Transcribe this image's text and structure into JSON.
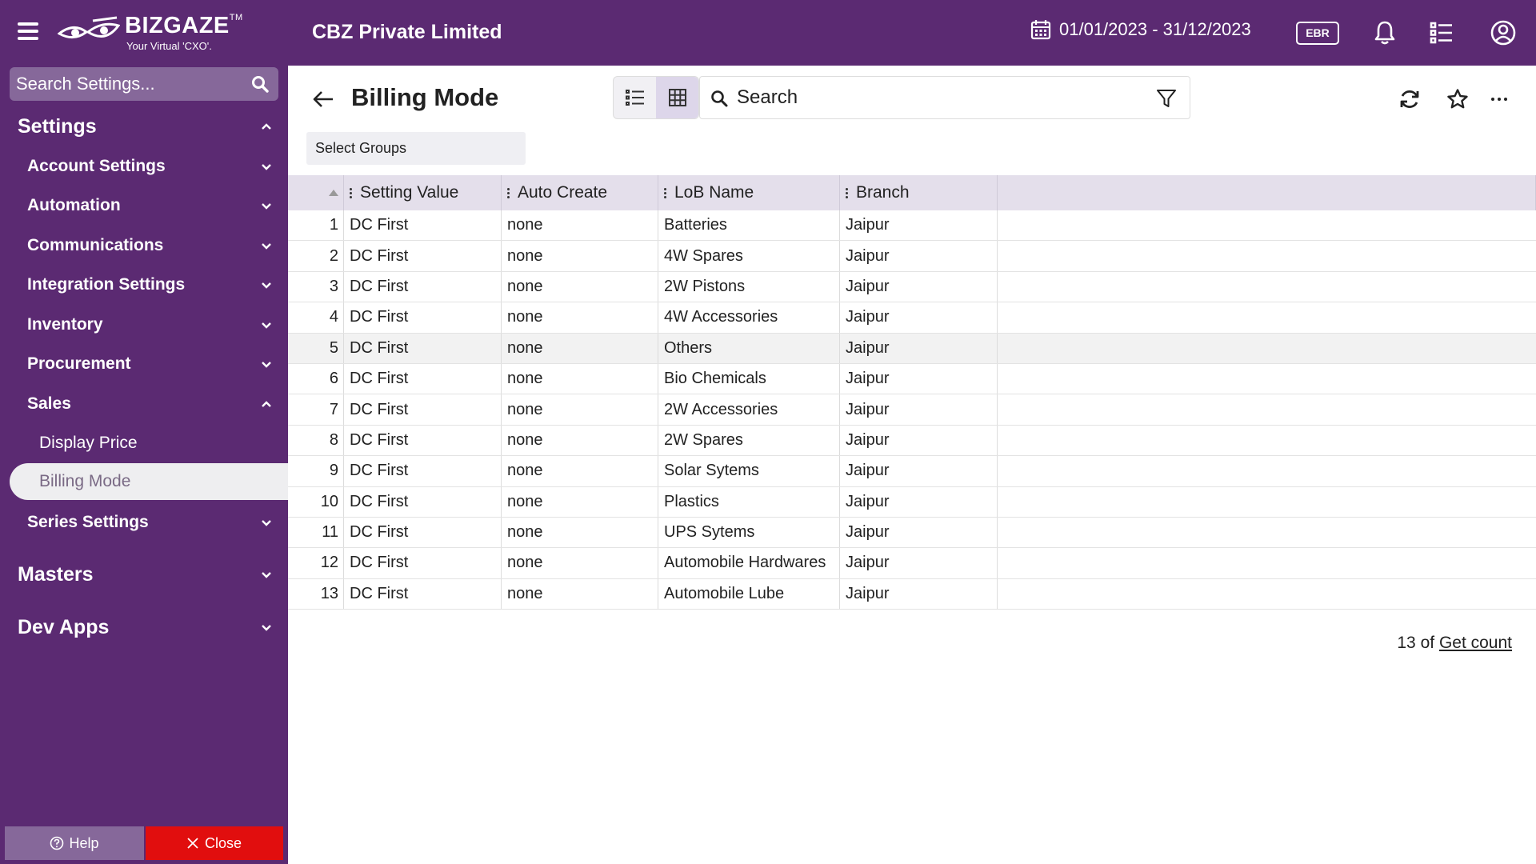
{
  "header": {
    "logo_text": "BIZGAZE",
    "logo_tm": "TM",
    "logo_tagline": "Your Virtual 'CXO'.",
    "company": "CBZ Private Limited",
    "date_range": "01/01/2023 - 31/12/2023",
    "badge": "EBR",
    "icons": [
      "menu-icon",
      "calendar-icon",
      "bell-icon",
      "task-list-icon",
      "user-circle-icon"
    ]
  },
  "sidebar": {
    "search_placeholder": "Search Settings...",
    "settings_label": "Settings",
    "groups": [
      {
        "label": "Account Settings"
      },
      {
        "label": "Automation"
      },
      {
        "label": "Communications"
      },
      {
        "label": "Integration Settings"
      },
      {
        "label": "Inventory"
      },
      {
        "label": "Procurement"
      },
      {
        "label": "Sales"
      }
    ],
    "sales_children": [
      {
        "label": "Display Price"
      },
      {
        "label": "Billing Mode"
      }
    ],
    "series_settings": "Series Settings",
    "masters": "Masters",
    "dev_apps": "Dev Apps",
    "help_label": "Help",
    "close_label": "Close",
    "colors": {
      "bg": "#5b2a72",
      "close": "#e10e0e",
      "active": "#eeeef0"
    }
  },
  "main": {
    "title": "Billing Mode",
    "search_placeholder": "Search",
    "select_groups": "Select Groups",
    "table": {
      "columns": [
        "Setting Value",
        "Auto Create",
        "LoB Name",
        "Branch"
      ],
      "rows": [
        {
          "n": "1",
          "setting": "DC First",
          "auto": "none",
          "lob": "Batteries",
          "branch": "Jaipur"
        },
        {
          "n": "2",
          "setting": "DC First",
          "auto": "none",
          "lob": "4W Spares",
          "branch": "Jaipur"
        },
        {
          "n": "3",
          "setting": "DC First",
          "auto": "none",
          "lob": "2W Pistons",
          "branch": "Jaipur"
        },
        {
          "n": "4",
          "setting": "DC First",
          "auto": "none",
          "lob": "4W Accessories",
          "branch": "Jaipur"
        },
        {
          "n": "5",
          "setting": "DC First",
          "auto": "none",
          "lob": "Others",
          "branch": "Jaipur"
        },
        {
          "n": "6",
          "setting": "DC First",
          "auto": "none",
          "lob": "Bio Chemicals",
          "branch": "Jaipur"
        },
        {
          "n": "7",
          "setting": "DC First",
          "auto": "none",
          "lob": "2W Accessories",
          "branch": "Jaipur"
        },
        {
          "n": "8",
          "setting": "DC First",
          "auto": "none",
          "lob": "2W Spares",
          "branch": "Jaipur"
        },
        {
          "n": "9",
          "setting": "DC First",
          "auto": "none",
          "lob": "Solar Sytems",
          "branch": "Jaipur"
        },
        {
          "n": "10",
          "setting": "DC First",
          "auto": "none",
          "lob": "Plastics",
          "branch": "Jaipur"
        },
        {
          "n": "11",
          "setting": "DC First",
          "auto": "none",
          "lob": "UPS Sytems",
          "branch": "Jaipur"
        },
        {
          "n": "12",
          "setting": "DC First",
          "auto": "none",
          "lob": "Automobile Hardwares",
          "branch": "Jaipur"
        },
        {
          "n": "13",
          "setting": "DC First",
          "auto": "none",
          "lob": "Automobile Lube",
          "branch": "Jaipur"
        }
      ]
    },
    "count_prefix": "13 of",
    "count_link": "Get count"
  }
}
